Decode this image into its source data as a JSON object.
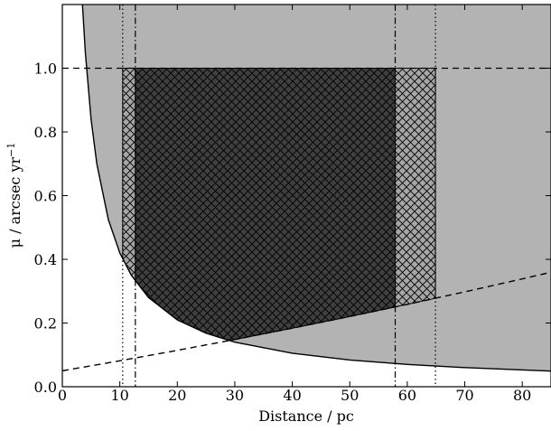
{
  "chart_data": {
    "type": "region",
    "xlabel": "Distance / pc",
    "ylabel": "μ / arcsec yr",
    "ylabel_sup": "−1",
    "xlim": [
      0,
      85
    ],
    "ylim": [
      0,
      1.2
    ],
    "xticks": [
      0,
      10,
      20,
      30,
      40,
      50,
      60,
      70,
      80
    ],
    "yticks": [
      {
        "value": 0,
        "label": "0.0"
      },
      0.2,
      0.4,
      0.6,
      0.8,
      {
        "value": 1,
        "label": "1.0"
      }
    ],
    "fill_color": "#b3b3b3",
    "series": [
      {
        "style": "solid",
        "color": "#000000",
        "x": [
          3.5,
          4,
          5,
          6,
          8,
          10,
          12,
          15,
          20,
          25,
          30,
          40,
          50,
          60,
          70,
          85
        ],
        "values": [
          1.2,
          1.05,
          0.84,
          0.7,
          0.525,
          0.42,
          0.35,
          0.28,
          0.21,
          0.168,
          0.14,
          0.105,
          0.084,
          0.07,
          0.06,
          0.049
        ]
      },
      {
        "style": "dashed",
        "color": "#000000",
        "x": [
          0,
          10,
          20,
          30,
          40,
          50,
          60,
          70,
          80,
          85
        ],
        "values": [
          0.05,
          0.0814,
          0.1142,
          0.1483,
          0.1838,
          0.2205,
          0.2586,
          0.2979,
          0.3386,
          0.3595
        ]
      }
    ],
    "hline": 1,
    "regions": [
      {
        "x": [
          10.5,
          64.9
        ],
        "color": "#a6a6a6",
        "style": "dotted"
      },
      {
        "x": [
          12.7,
          57.9
        ],
        "color": "#3f3f3f",
        "style": "dashdot"
      }
    ]
  }
}
